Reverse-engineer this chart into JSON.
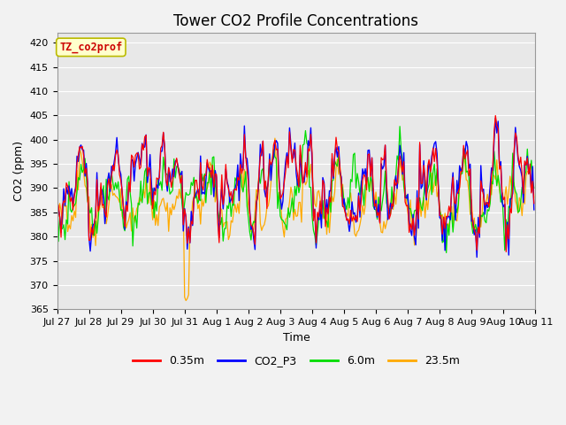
{
  "title": "Tower CO2 Profile Concentrations",
  "xlabel": "Time",
  "ylabel": "CO2 (ppm)",
  "ylim": [
    365,
    422
  ],
  "yticks": [
    365,
    370,
    375,
    380,
    385,
    390,
    395,
    400,
    405,
    410,
    415,
    420
  ],
  "series_labels": [
    "0.35m",
    "CO2_P3",
    "6.0m",
    "23.5m"
  ],
  "series_colors": [
    "#ff0000",
    "#0000ff",
    "#00dd00",
    "#ffaa00"
  ],
  "legend_label": "TZ_co2prof",
  "legend_label_color": "#cc0000",
  "legend_box_facecolor": "#ffffcc",
  "legend_box_edgecolor": "#bbbb00",
  "plot_bg_color": "#e8e8e8",
  "fig_bg_color": "#f2f2f2",
  "grid_color": "#ffffff",
  "xtick_positions": [
    0,
    1,
    2,
    3,
    4,
    5,
    6,
    7,
    8,
    9,
    10,
    11,
    12,
    13,
    14,
    15
  ],
  "xtick_labels": [
    "Jul 27",
    "Jul 28",
    "Jul 29",
    "Jul 30",
    "Jul 31",
    "Aug 1",
    "Aug 2",
    "Aug 3",
    "Aug 4",
    "Aug 5",
    "Aug 6",
    "Aug 7",
    "Aug 8",
    "Aug 9",
    "Aug 10",
    "Aug 11"
  ],
  "title_fontsize": 12,
  "axis_fontsize": 9,
  "tick_fontsize": 8
}
